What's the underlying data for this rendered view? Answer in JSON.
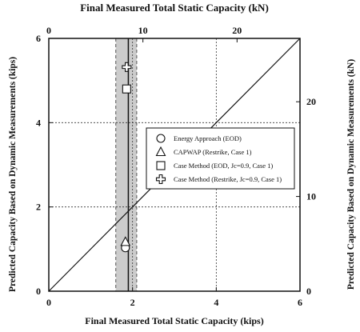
{
  "chart_data": {
    "type": "scatter",
    "xlabel_bottom": "Final Measured Total Static Capacity (kips)",
    "xlabel_top": "Final Measured Total Static Capacity (kN)",
    "ylabel_left": "Predicted Capacity Based on Dynamic Measurements (kips)",
    "ylabel_right": "Predicted Capacity Based on Dynamic Measurements (kN)",
    "xlim": [
      0,
      6
    ],
    "ylim": [
      0,
      6
    ],
    "x_ticks": [
      "0",
      "2",
      "4",
      "6"
    ],
    "y_ticks": [
      "0",
      "2",
      "4",
      "6"
    ],
    "x_ticks_kn": [
      "0",
      "10",
      "20"
    ],
    "y_ticks_kn": [
      "0",
      "10",
      "20"
    ],
    "kn_per_kip": 4.448,
    "grid": "dashed at 2 and 4 kips",
    "equality_line": true,
    "shaded_band": {
      "x_min": 1.6,
      "x_max": 2.1,
      "center_x": 1.9,
      "color": "#cccccc"
    },
    "legend_position": "middle-right",
    "series": [
      {
        "name": "Energy Approach (EOD)",
        "marker": "circle",
        "x": [
          1.83
        ],
        "y": [
          1.03
        ]
      },
      {
        "name": "CAPWAP (Restrike, Case 1)",
        "marker": "triangle",
        "x": [
          1.83
        ],
        "y": [
          1.17
        ]
      },
      {
        "name": "Case Method (EOD, Jc=0.9, Case 1)",
        "marker": "square",
        "x": [
          1.86
        ],
        "y": [
          4.8
        ]
      },
      {
        "name": "Case Method (Restrike, Jc=0.9, Case 1)",
        "marker": "cross",
        "x": [
          1.86
        ],
        "y": [
          5.32
        ]
      }
    ]
  }
}
